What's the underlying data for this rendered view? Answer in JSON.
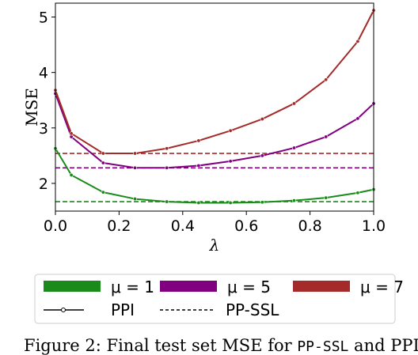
{
  "chart_data": {
    "type": "line",
    "xlabel": "λ",
    "ylabel": "MSE",
    "xlim": [
      0.0,
      1.0
    ],
    "ylim": [
      1.5,
      5.25
    ],
    "xticks": [
      "0.0",
      "0.2",
      "0.4",
      "0.6",
      "0.8",
      "1.0"
    ],
    "yticks": [
      "2",
      "3",
      "4",
      "5"
    ],
    "x": [
      0.0,
      0.05,
      0.15,
      0.25,
      0.35,
      0.45,
      0.55,
      0.65,
      0.75,
      0.85,
      0.95,
      1.0
    ],
    "series": [
      {
        "name": "μ = 1",
        "color": "#1a8a1a",
        "values": [
          2.63,
          2.15,
          1.84,
          1.72,
          1.67,
          1.65,
          1.65,
          1.66,
          1.69,
          1.74,
          1.83,
          1.89
        ],
        "baseline": 1.67
      },
      {
        "name": "μ = 5",
        "color": "#800080",
        "values": [
          3.62,
          2.84,
          2.37,
          2.28,
          2.28,
          2.32,
          2.4,
          2.5,
          2.64,
          2.84,
          3.17,
          3.44
        ],
        "baseline": 2.28
      },
      {
        "name": "μ = 7",
        "color": "#a52a2a",
        "values": [
          3.68,
          2.9,
          2.54,
          2.54,
          2.63,
          2.77,
          2.95,
          3.16,
          3.44,
          3.87,
          4.56,
          5.12
        ],
        "baseline": 2.54
      }
    ],
    "legend": {
      "placement": "bottom",
      "entries": [
        "μ = 1",
        "μ = 5",
        "μ = 7"
      ],
      "style_entries": [
        "PPI",
        "PP-SSL"
      ]
    }
  },
  "caption": {
    "prefix": "Figure 2: Final test set MSE for ",
    "code1": "PP-SSL",
    "middle": " and PPI"
  }
}
